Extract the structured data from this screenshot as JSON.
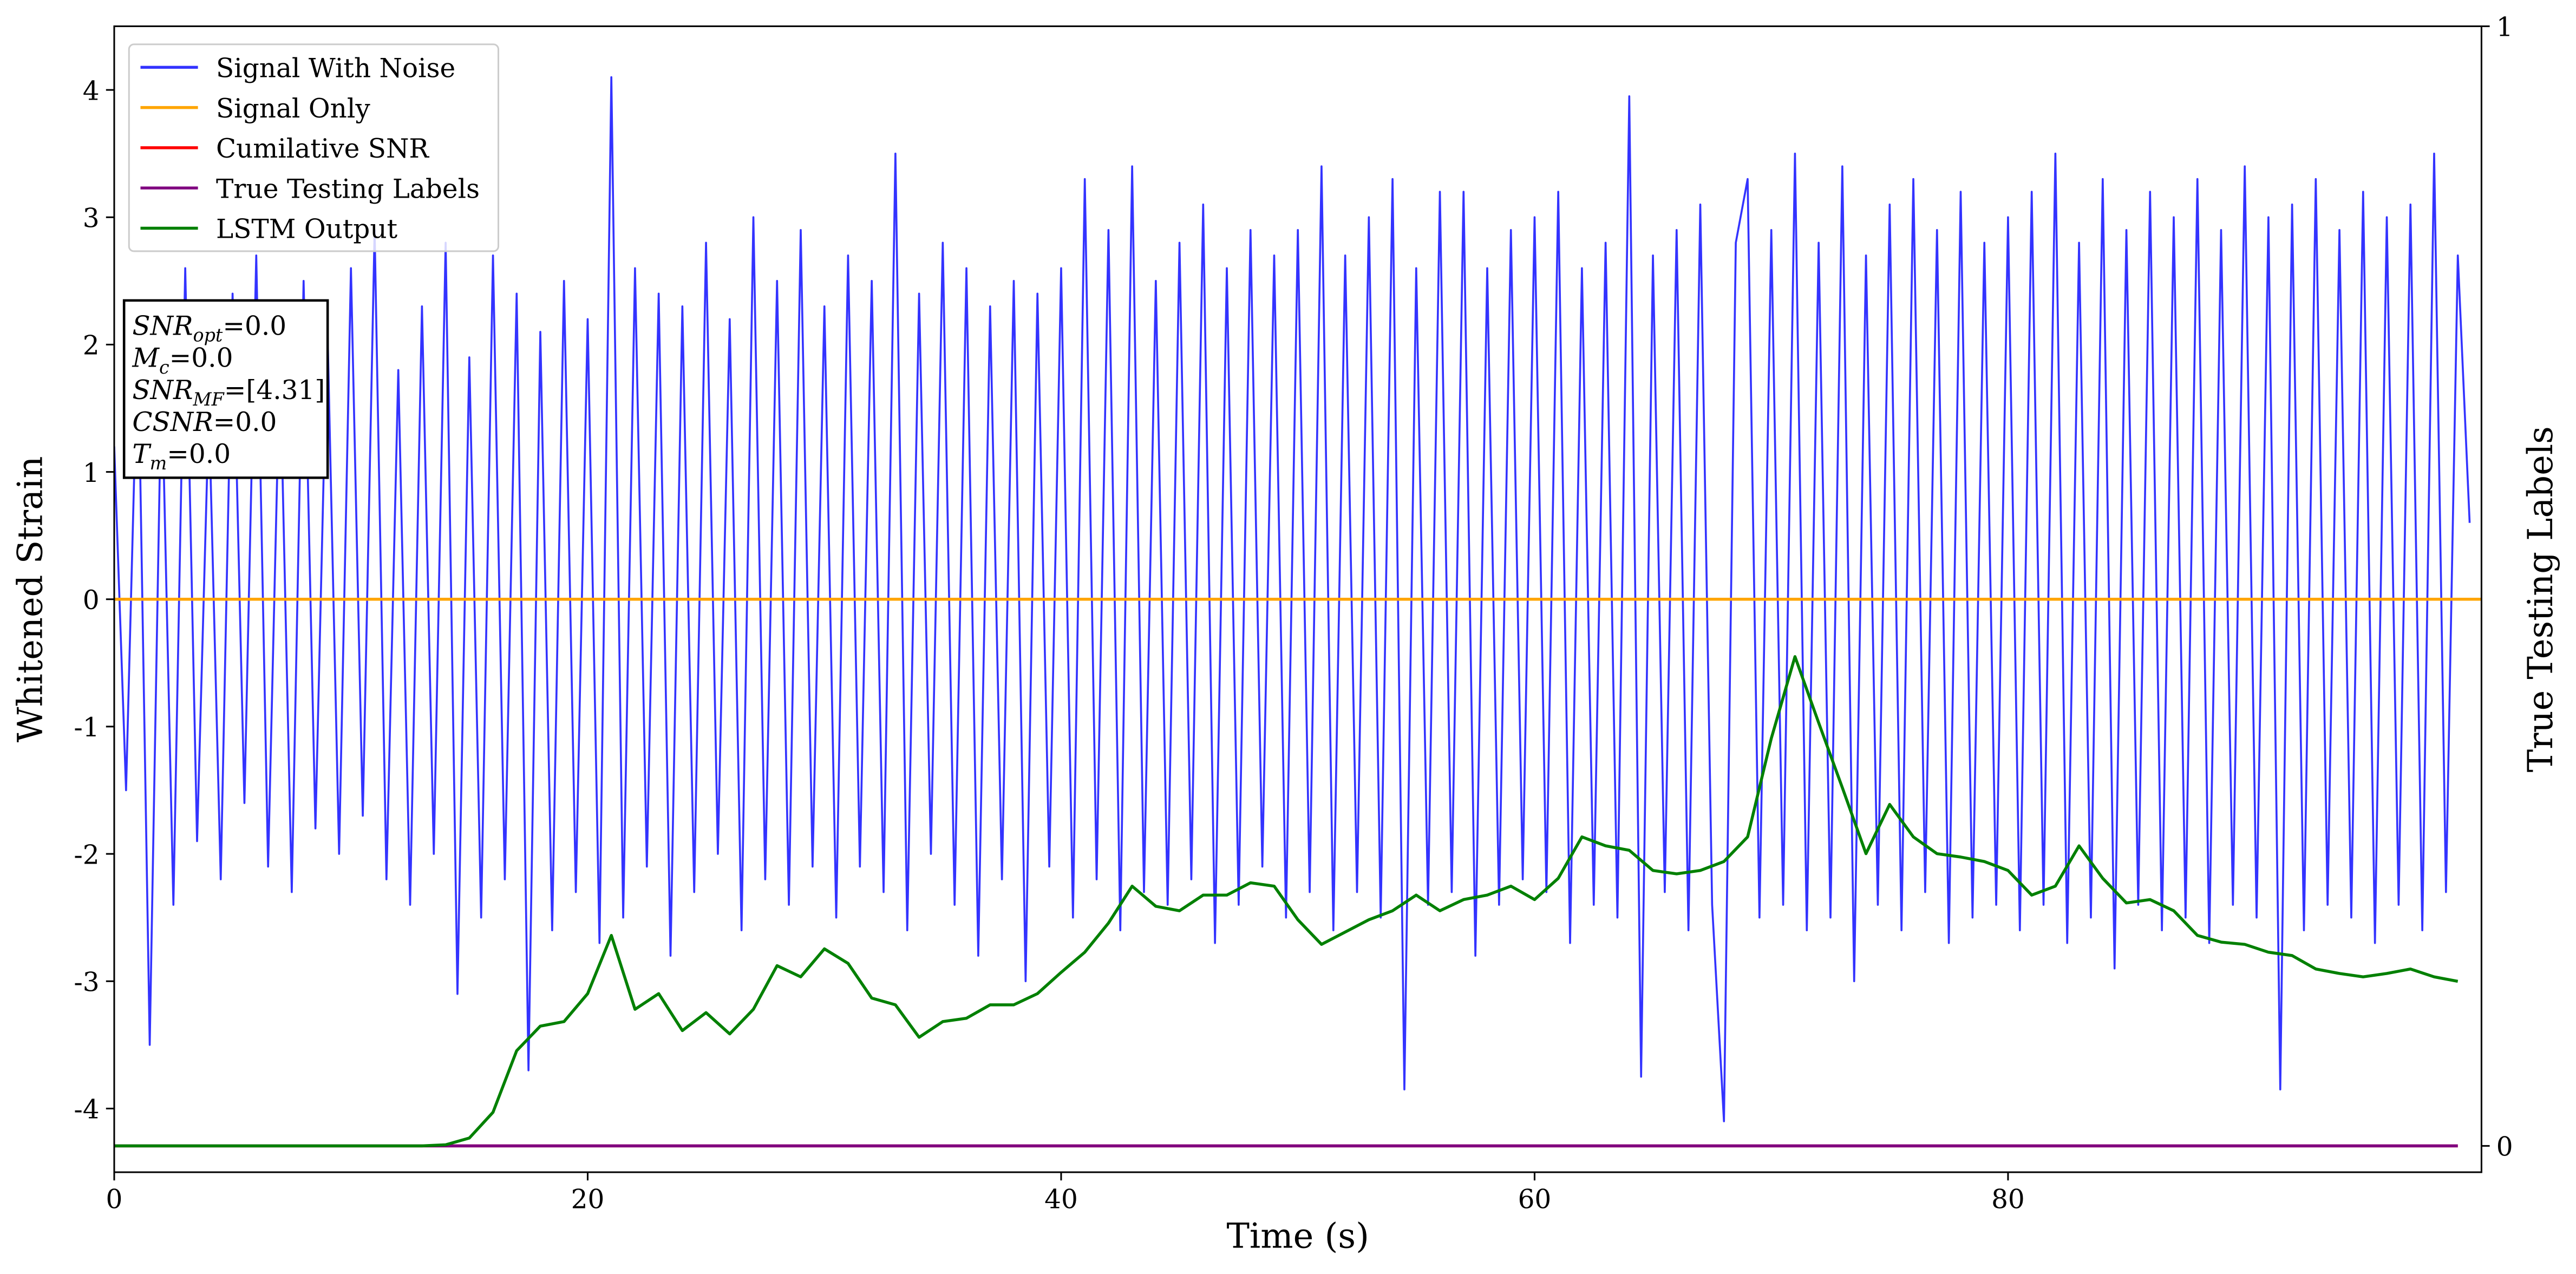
{
  "chart_data": {
    "type": "line",
    "x_label": "Time (s)",
    "y_label": "Whitened Strain",
    "y2_label": "True Testing Labels",
    "xlim": [
      0,
      100
    ],
    "xticks": [
      0,
      20,
      40,
      60,
      80
    ],
    "ylim": [
      -4.5,
      4.5
    ],
    "yticks": [
      -4,
      -3,
      -2,
      -1,
      0,
      1,
      2,
      3,
      4
    ],
    "y2lim": [
      -0.0235,
      1
    ],
    "y2ticks": [
      0,
      1
    ],
    "legend": "upper left",
    "annotations": [
      {
        "base": "SNR",
        "sub": "opt",
        "rest": "=0.0"
      },
      {
        "base": "M",
        "sub": "c",
        "rest": "=0.0"
      },
      {
        "base": "SNR",
        "sub": "MF",
        "rest": "=[4.31]"
      },
      {
        "base": "CSNR",
        "rest": "=0.0"
      },
      {
        "base": "T",
        "sub": "m",
        "rest": "=0.0"
      }
    ],
    "series": [
      {
        "name": "Signal With Noise",
        "color": "#3333ff",
        "x": [
          0,
          0.5,
          1,
          1.5,
          2,
          2.5,
          3,
          3.5,
          4,
          4.5,
          5,
          5.5,
          6,
          6.5,
          7,
          7.5,
          8,
          8.5,
          9,
          9.5,
          10,
          10.5,
          11,
          11.5,
          12,
          12.5,
          13,
          13.5,
          14,
          14.5,
          15,
          15.5,
          16,
          16.5,
          17,
          17.5,
          18,
          18.5,
          19,
          19.5,
          20,
          20.5,
          21,
          21.5,
          22,
          22.5,
          23,
          23.5,
          24,
          24.5,
          25,
          25.5,
          26,
          26.5,
          27,
          27.5,
          28,
          28.5,
          29,
          29.5,
          30,
          30.5,
          31,
          31.5,
          32,
          32.5,
          33,
          33.5,
          34,
          34.5,
          35,
          35.5,
          36,
          36.5,
          37,
          37.5,
          38,
          38.5,
          39,
          39.5,
          40,
          40.5,
          41,
          41.5,
          42,
          42.5,
          43,
          43.5,
          44,
          44.5,
          45,
          45.5,
          46,
          46.5,
          47,
          47.5,
          48,
          48.5,
          49,
          49.5,
          50,
          50.5,
          51,
          51.5,
          52,
          52.5,
          53,
          53.5,
          54,
          54.5,
          55,
          55.5,
          56,
          56.5,
          57,
          57.5,
          58,
          58.5,
          59,
          59.5,
          60,
          60.5,
          61,
          61.5,
          62,
          62.5,
          63,
          63.5,
          64,
          64.5,
          65,
          65.5,
          66,
          66.5,
          67,
          67.5,
          68,
          68.5,
          69,
          69.5,
          70,
          70.5,
          71,
          71.5,
          72,
          72.5,
          73,
          73.5,
          74,
          74.5,
          75,
          75.5,
          76,
          76.5,
          77,
          77.5,
          78,
          78.5,
          79,
          79.5,
          80,
          80.5,
          81,
          81.5,
          82,
          82.5,
          83,
          83.5,
          84,
          84.5,
          85,
          85.5,
          86,
          86.5,
          87,
          87.5,
          88,
          88.5,
          89,
          89.5,
          90,
          90.5,
          91,
          91.5,
          92,
          92.5,
          93,
          93.5,
          94,
          94.5,
          95,
          95.5,
          96,
          96.5,
          97,
          97.5,
          98,
          98.5,
          99,
          99.5
        ],
        "values": [
          1.2,
          -1.5,
          2.1,
          -3.5,
          1.8,
          -2.4,
          2.6,
          -1.9,
          1.5,
          -2.2,
          2.4,
          -1.6,
          2.7,
          -2.1,
          1.9,
          -2.3,
          2.5,
          -1.8,
          2.2,
          -2.0,
          2.6,
          -1.7,
          2.9,
          -2.2,
          1.8,
          -2.4,
          2.3,
          -2.0,
          2.8,
          -3.1,
          1.9,
          -2.5,
          2.7,
          -2.2,
          2.4,
          -3.7,
          2.1,
          -2.6,
          2.5,
          -2.3,
          2.2,
          -2.7,
          4.1,
          -2.5,
          2.6,
          -2.1,
          2.4,
          -2.8,
          2.3,
          -2.3,
          2.8,
          -2.0,
          2.2,
          -2.6,
          3.0,
          -2.2,
          2.5,
          -2.4,
          2.9,
          -2.1,
          2.3,
          -2.5,
          2.7,
          -2.1,
          2.5,
          -2.3,
          3.5,
          -2.6,
          2.4,
          -2.0,
          2.8,
          -2.4,
          2.6,
          -2.8,
          2.3,
          -2.2,
          2.5,
          -3.0,
          2.4,
          -2.1,
          2.6,
          -2.5,
          3.3,
          -2.2,
          2.9,
          -2.6,
          3.4,
          -2.3,
          2.5,
          -2.4,
          2.8,
          -2.2,
          3.1,
          -2.7,
          2.6,
          -2.4,
          2.9,
          -2.1,
          2.7,
          -2.5,
          2.9,
          -2.3,
          3.4,
          -2.6,
          2.7,
          -2.3,
          3.0,
          -2.5,
          3.3,
          -3.85,
          2.6,
          -2.4,
          3.2,
          -2.3,
          3.2,
          -2.8,
          2.6,
          -2.4,
          2.9,
          -2.2,
          3.0,
          -2.3,
          3.2,
          -2.7,
          2.6,
          -2.4,
          2.8,
          -2.5,
          3.95,
          -3.75,
          2.7,
          -2.3,
          2.9,
          -2.6,
          3.1,
          -2.4,
          -4.1,
          2.8,
          3.3,
          -2.5,
          2.9,
          -2.4,
          3.5,
          -2.6,
          2.8,
          -2.5,
          3.4,
          -3.0,
          2.7,
          -2.4,
          3.1,
          -2.6,
          3.3,
          -2.3,
          2.9,
          -2.7,
          3.2,
          -2.5,
          2.8,
          -2.4,
          3.0,
          -2.6,
          3.2,
          -2.4,
          3.5,
          -2.7,
          2.8,
          -2.5,
          3.3,
          -2.9,
          2.9,
          -2.4,
          3.2,
          -2.6,
          3.0,
          -2.5,
          3.3,
          -2.7,
          2.9,
          -2.4,
          3.4,
          -2.5,
          3.0,
          -3.85,
          3.1,
          -2.6,
          3.3,
          -2.4,
          2.9,
          -2.5,
          3.2,
          -2.7,
          3.0,
          -2.4,
          3.1,
          -2.6,
          3.5,
          -2.3,
          2.7,
          0.6
        ]
      },
      {
        "name": "Signal Only",
        "color": "#ffa500",
        "x": [
          0,
          100
        ],
        "values": [
          0,
          0
        ]
      },
      {
        "name": "Cumilative SNR",
        "color": "#ff0000",
        "axis": "y2",
        "x": [
          0,
          99
        ],
        "values": [
          0,
          0
        ]
      },
      {
        "name": "True Testing Labels",
        "color": "#800080",
        "axis": "y2",
        "x": [
          0,
          99
        ],
        "values": [
          0,
          0
        ]
      },
      {
        "name": "LSTM Output",
        "color": "#008000",
        "axis": "y2",
        "x": [
          0,
          1,
          2,
          3,
          4,
          5,
          6,
          7,
          8,
          9,
          10,
          11,
          12,
          13,
          14,
          15,
          16,
          17,
          18,
          19,
          20,
          21,
          22,
          23,
          24,
          25,
          26,
          27,
          28,
          29,
          30,
          31,
          32,
          33,
          34,
          35,
          36,
          37,
          38,
          39,
          40,
          41,
          42,
          43,
          44,
          45,
          46,
          47,
          48,
          49,
          50,
          51,
          52,
          53,
          54,
          55,
          56,
          57,
          58,
          59,
          60,
          61,
          62,
          63,
          64,
          65,
          66,
          67,
          68,
          69,
          70,
          71,
          72,
          73,
          74,
          75,
          76,
          77,
          78,
          79,
          80,
          81,
          82,
          83,
          84,
          85,
          86,
          87,
          88,
          89,
          90,
          91,
          92,
          93,
          94,
          95,
          96,
          97,
          98,
          99
        ],
        "values": [
          0,
          0,
          0,
          0,
          0,
          0,
          0,
          0,
          0,
          0,
          0,
          0,
          0,
          0,
          0.001,
          0.007,
          0.03,
          0.085,
          0.107,
          0.111,
          0.136,
          0.188,
          0.122,
          0.136,
          0.103,
          0.119,
          0.1,
          0.122,
          0.161,
          0.151,
          0.176,
          0.163,
          0.132,
          0.126,
          0.097,
          0.111,
          0.114,
          0.126,
          0.126,
          0.136,
          0.155,
          0.173,
          0.199,
          0.232,
          0.214,
          0.21,
          0.224,
          0.224,
          0.235,
          0.232,
          0.202,
          0.18,
          0.191,
          0.202,
          0.21,
          0.224,
          0.21,
          0.22,
          0.224,
          0.232,
          0.22,
          0.239,
          0.276,
          0.268,
          0.264,
          0.246,
          0.243,
          0.246,
          0.254,
          0.276,
          0.364,
          0.437,
          0.378,
          0.32,
          0.261,
          0.305,
          0.276,
          0.261,
          0.258,
          0.254,
          0.246,
          0.224,
          0.232,
          0.268,
          0.239,
          0.217,
          0.22,
          0.21,
          0.188,
          0.182,
          0.18,
          0.173,
          0.17,
          0.158,
          0.154,
          0.151,
          0.154,
          0.158,
          0.151,
          0.147
        ]
      }
    ]
  }
}
